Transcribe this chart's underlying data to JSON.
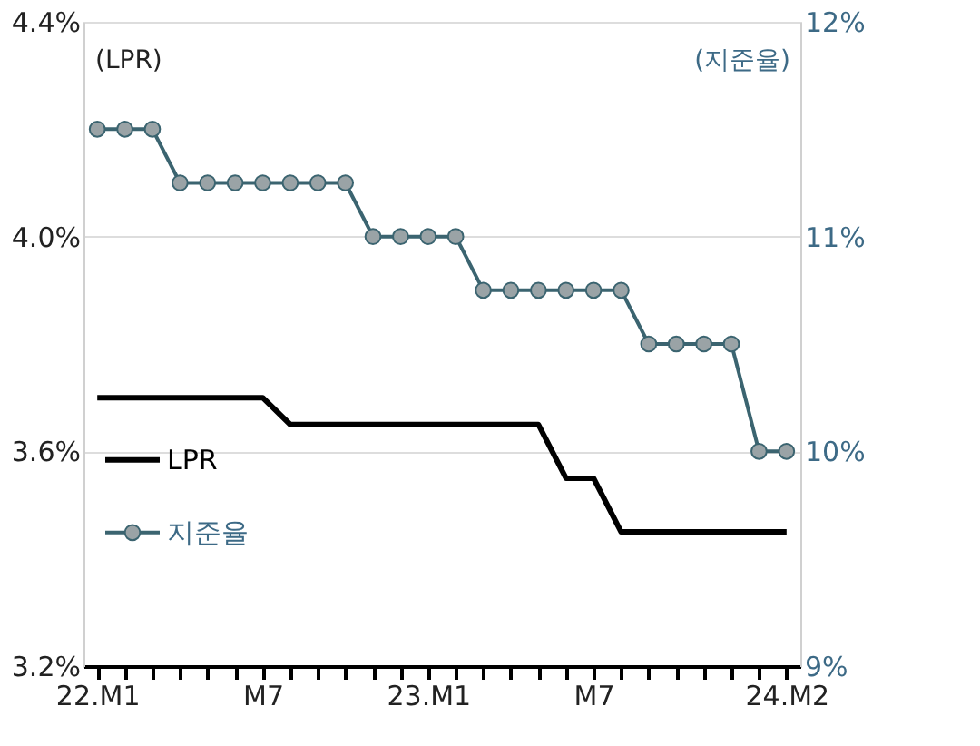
{
  "chart_data": {
    "type": "line",
    "ylabel": "(LPR)",
    "y2label": "(지준율)",
    "categories": [
      "22.M1",
      null,
      null,
      null,
      null,
      null,
      "M7",
      null,
      null,
      null,
      null,
      null,
      "23.M1",
      null,
      null,
      null,
      null,
      null,
      "M7",
      null,
      null,
      null,
      null,
      null,
      null,
      "24.M2"
    ],
    "series": [
      {
        "name": "LPR",
        "color": "#000000",
        "marker": "none",
        "values": [
          3.7,
          3.7,
          3.7,
          3.7,
          3.7,
          3.7,
          3.7,
          3.65,
          3.65,
          3.65,
          3.65,
          3.65,
          3.65,
          3.65,
          3.65,
          3.65,
          3.65,
          3.55,
          3.55,
          3.45,
          3.45,
          3.45,
          3.45,
          3.45,
          3.45,
          3.45
        ]
      },
      {
        "name": "지준율",
        "color": "#3b6470",
        "marker": "circle",
        "axis": "y2",
        "values": [
          11.5,
          11.5,
          11.5,
          11.25,
          11.25,
          11.25,
          11.25,
          11.25,
          11.25,
          11.25,
          11.0,
          11.0,
          11.0,
          11.0,
          10.75,
          10.75,
          10.75,
          10.75,
          10.75,
          10.75,
          10.5,
          10.5,
          10.5,
          10.5,
          10.0,
          10.0
        ]
      }
    ],
    "ylim": [
      3.2,
      4.4
    ],
    "yticks": [
      {
        "value": 3.2,
        "label": "3.2%"
      },
      {
        "value": 3.6,
        "label": "3.6%"
      },
      {
        "value": 4.0,
        "label": "4.0%"
      },
      {
        "value": 4.4,
        "label": "4.4%"
      }
    ],
    "y2lim": [
      9,
      12
    ],
    "y2ticks": [
      {
        "value": 9,
        "label": "9%"
      },
      {
        "value": 10,
        "label": "10%"
      },
      {
        "value": 11,
        "label": "11%"
      },
      {
        "value": 12,
        "label": "12%"
      }
    ],
    "grid": "y",
    "legend": "bottom left"
  }
}
